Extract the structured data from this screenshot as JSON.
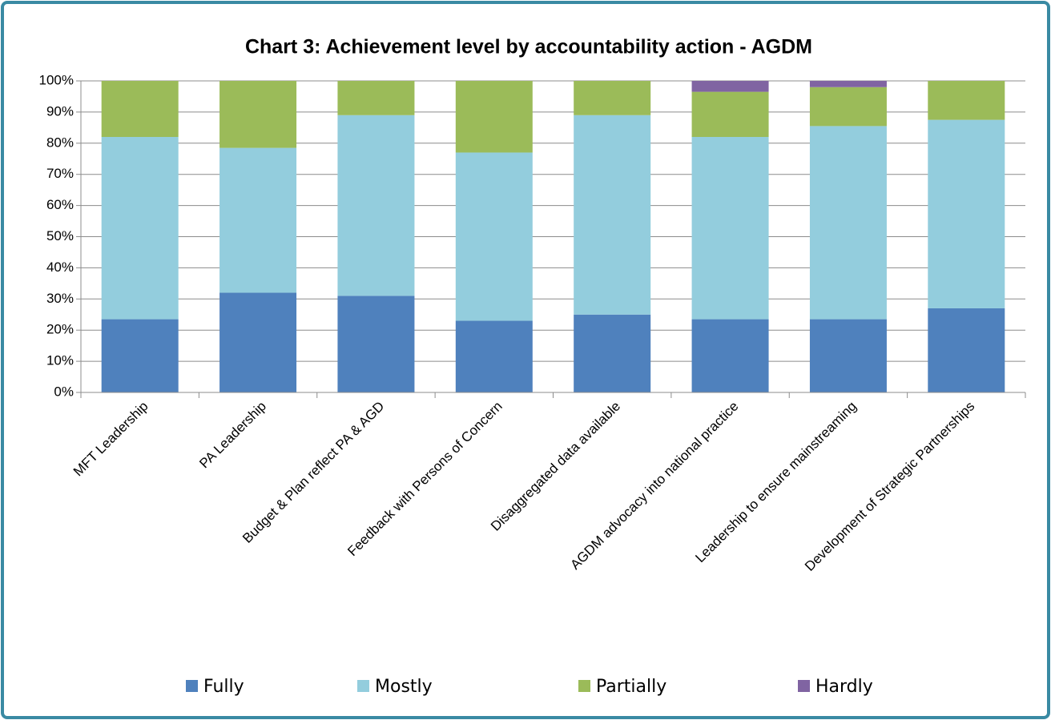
{
  "chart_data": {
    "type": "stacked_bar",
    "title": "Chart 3: Achievement level by accountability action - AGDM",
    "categories": [
      "MFT Leadership",
      "PA Leadership",
      "Budget & Plan reflect PA & AGD",
      "Feedback with Persons of Concern",
      "Disaggregated data available",
      "AGDM advocacy into national practice",
      "Leadership to ensure mainstreaming",
      "Development of Strategic Partnerships"
    ],
    "series": [
      {
        "name": "Fully",
        "color": "#4f81bd",
        "values": [
          23.5,
          32,
          31,
          23,
          25,
          23.5,
          23.5,
          27
        ]
      },
      {
        "name": "Mostly",
        "color": "#93cddd",
        "values": [
          58.5,
          46.5,
          58,
          54,
          64,
          58.5,
          62,
          60.5
        ]
      },
      {
        "name": "Partially",
        "color": "#9bbb59",
        "values": [
          18,
          21.5,
          11,
          23,
          11,
          14.5,
          12.5,
          12.5
        ]
      },
      {
        "name": "Hardly",
        "color": "#8064a2",
        "values": [
          0,
          0,
          0,
          0,
          0,
          3.5,
          2,
          0
        ]
      }
    ],
    "ylim": [
      0,
      100
    ],
    "yticks": [
      {
        "value": 0,
        "label": "0%"
      },
      {
        "value": 10,
        "label": "10%"
      },
      {
        "value": 20,
        "label": "20%"
      },
      {
        "value": 30,
        "label": "30%"
      },
      {
        "value": 40,
        "label": "40%"
      },
      {
        "value": 50,
        "label": "50%"
      },
      {
        "value": 60,
        "label": "60%"
      },
      {
        "value": 70,
        "label": "70%"
      },
      {
        "value": 80,
        "label": "80%"
      },
      {
        "value": 90,
        "label": "90%"
      },
      {
        "value": 100,
        "label": "100%"
      }
    ],
    "grid": true,
    "legend": "bottom"
  }
}
